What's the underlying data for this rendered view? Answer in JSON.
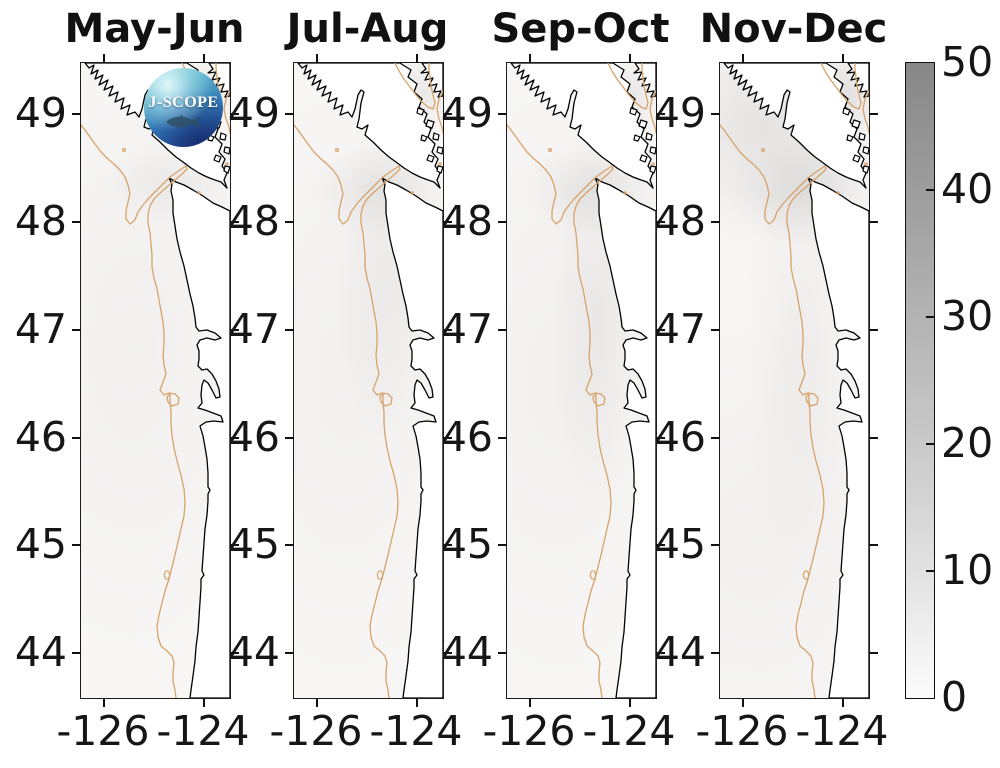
{
  "figure": {
    "background": "#ffffff"
  },
  "panels": [
    {
      "title": "May-Jun",
      "has_logo": true
    },
    {
      "title": "Jul-Aug",
      "has_logo": false
    },
    {
      "title": "Sep-Oct",
      "has_logo": false
    },
    {
      "title": "Nov-Dec",
      "has_logo": false
    }
  ],
  "axes": {
    "lat_ticks": [
      "49",
      "48",
      "47",
      "46",
      "45",
      "44"
    ],
    "lon_ticks": [
      "-126",
      "-124"
    ]
  },
  "colorbar": {
    "tick_labels": [
      "50",
      "40",
      "30",
      "20",
      "10",
      "0"
    ],
    "min": 0,
    "max": 50,
    "top_color": "#878787",
    "bottom_color": "#fcfcfc"
  },
  "logo": {
    "text": "J-SCOPE"
  },
  "colors": {
    "coastline": "#000000",
    "depth_contour": "#d7a26b",
    "land": "#ffffff"
  },
  "chart_data": {
    "type": "heatmap",
    "subtype": "seasonal-coastal-map-panels",
    "panel_titles": [
      "May-Jun",
      "Jul-Aug",
      "Sep-Oct",
      "Nov-Dec"
    ],
    "x_tick_labels": [
      "-126",
      "-124"
    ],
    "y_tick_labels": [
      "49",
      "48",
      "47",
      "46",
      "45",
      "44"
    ],
    "x_axis_meaning": "longitude (degrees)",
    "y_axis_meaning": "latitude (degrees)",
    "colorbar": {
      "ticks": [
        0,
        10,
        20,
        30,
        40,
        50
      ],
      "range": [
        0,
        50
      ],
      "colormap": "white (0) to medium gray (50)",
      "position": "right"
    },
    "field_values_note": "mapped field is near 0 (white to very light gray) over almost the entire ocean domain in all four panels",
    "map_features": [
      "black coastline of Vancouver Island, Strait of Juan de Fuca, Washington and Oregon coasts",
      "tan shelf-break depth contour running parallel to shore",
      "tan contour loop in Strait of Georgia",
      "small closed tan contours offshore"
    ],
    "grid": false
  }
}
